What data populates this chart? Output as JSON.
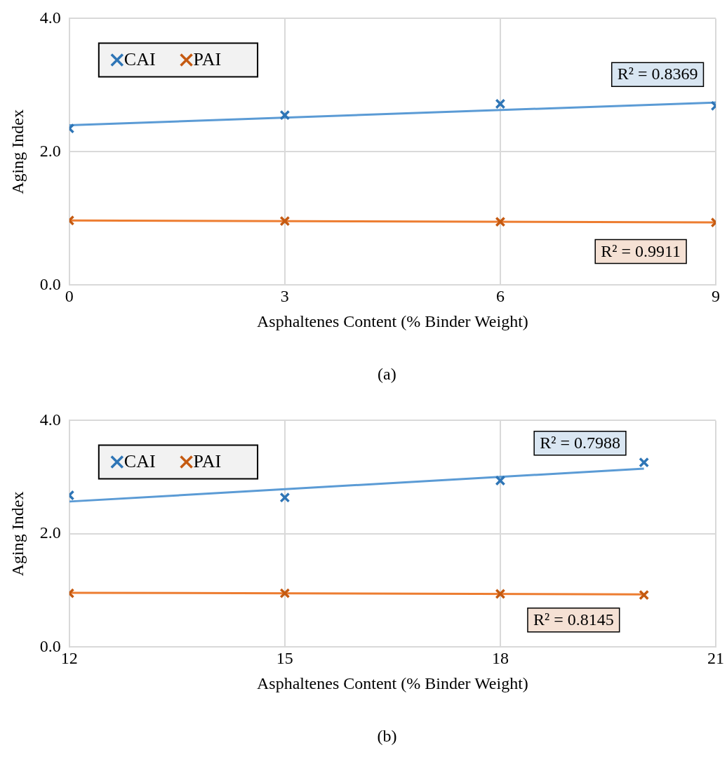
{
  "chart_data": [
    {
      "type": "scatter",
      "xlabel": "Asphaltenes Content (% Binder Weight)",
      "ylabel": "Aging Index",
      "xlim": [
        0,
        9
      ],
      "xticks": [
        0,
        3,
        6,
        9
      ],
      "ylim": [
        0,
        4
      ],
      "yticks": [
        {
          "value": 0,
          "label": "0.0"
        },
        {
          "value": 2,
          "label": "2.0"
        },
        {
          "value": 4,
          "label": "4.0"
        }
      ],
      "grid": true,
      "legend": "top left",
      "series": [
        {
          "name": "CAI",
          "marker": "cross",
          "color": "#2e75b6",
          "x": [
            0,
            3,
            6,
            9
          ],
          "values": [
            2.35,
            2.55,
            2.72,
            2.69
          ]
        },
        {
          "name": "PAI",
          "marker": "cross",
          "color": "#c55a11",
          "x": [
            0,
            3,
            6,
            9
          ],
          "values": [
            0.97,
            0.96,
            0.95,
            0.94
          ]
        },
        {
          "type": "line",
          "marker": "none",
          "color": "#5b9bd5",
          "x": [
            0,
            9
          ],
          "values": [
            2.4,
            2.74
          ]
        },
        {
          "type": "line",
          "marker": "none",
          "color": "#ed7d31",
          "x": [
            0,
            9
          ],
          "values": [
            0.97,
            0.94
          ]
        }
      ],
      "annotations": [
        "R² = 0.8369",
        "R² = 0.9911",
        "(a)"
      ]
    },
    {
      "type": "scatter",
      "xlabel": "Asphaltenes Content (% Binder Weight)",
      "ylabel": "Aging Index",
      "xlim": [
        12,
        21
      ],
      "xticks": [
        12,
        15,
        18,
        21
      ],
      "ylim": [
        0,
        4
      ],
      "yticks": [
        {
          "value": 0,
          "label": "0.0"
        },
        {
          "value": 2,
          "label": "2.0"
        },
        {
          "value": 4,
          "label": "4.0"
        }
      ],
      "grid": true,
      "legend": "top left",
      "series": [
        {
          "name": "CAI",
          "marker": "cross",
          "color": "#2e75b6",
          "x": [
            12,
            15,
            18,
            20
          ],
          "values": [
            2.68,
            2.64,
            2.94,
            3.26
          ]
        },
        {
          "name": "PAI",
          "marker": "cross",
          "color": "#c55a11",
          "x": [
            12,
            15,
            18,
            20
          ],
          "values": [
            0.95,
            0.95,
            0.94,
            0.92
          ]
        },
        {
          "type": "line",
          "marker": "none",
          "color": "#5b9bd5",
          "x": [
            12,
            20
          ],
          "values": [
            2.57,
            3.15
          ]
        },
        {
          "type": "line",
          "marker": "none",
          "color": "#ed7d31",
          "x": [
            12,
            20
          ],
          "values": [
            0.96,
            0.93
          ]
        }
      ],
      "annotations": [
        "R² = 0.7988",
        "R² = 0.8145",
        "(b)"
      ]
    }
  ]
}
